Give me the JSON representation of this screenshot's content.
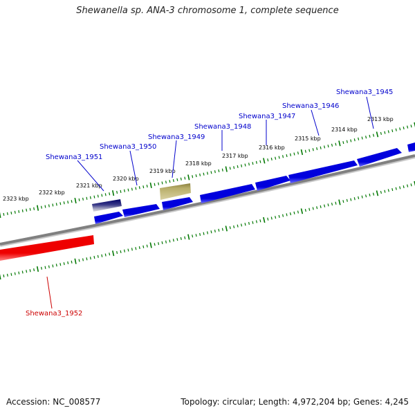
{
  "title": "Shewanella sp. ANA-3 chromosome 1, complete sequence",
  "footer": {
    "accession": "Accession: NC_008577",
    "stats": "Topology: circular; Length: 4,972,204 bp; Genes: 4,245"
  },
  "colors": {
    "forward_gene": "#0000dd",
    "reverse_gene": "#ee0000",
    "highlight_gene": "#b8ae6a",
    "selected_gene": "#000066",
    "backbone": "#808080",
    "ticks": "#007700",
    "forward_label": "#0000cc",
    "reverse_label": "#cc0000"
  },
  "kbp_labels": [
    "2313 kbp",
    "2314 kbp",
    "2315 kbp",
    "2316 kbp",
    "2317 kbp",
    "2318 kbp",
    "2319 kbp",
    "2320 kbp",
    "2321 kbp",
    "2322 kbp",
    "2323 kbp"
  ],
  "gene_labels": [
    {
      "name": "Shewana3_1945",
      "strand": "forward"
    },
    {
      "name": "Shewana3_1946",
      "strand": "forward"
    },
    {
      "name": "Shewana3_1947",
      "strand": "forward"
    },
    {
      "name": "Shewana3_1948",
      "strand": "forward"
    },
    {
      "name": "Shewana3_1949",
      "strand": "forward"
    },
    {
      "name": "Shewana3_1950",
      "strand": "forward"
    },
    {
      "name": "Shewana3_1951",
      "strand": "forward"
    },
    {
      "name": "Shewana3_1952",
      "strand": "reverse"
    }
  ]
}
